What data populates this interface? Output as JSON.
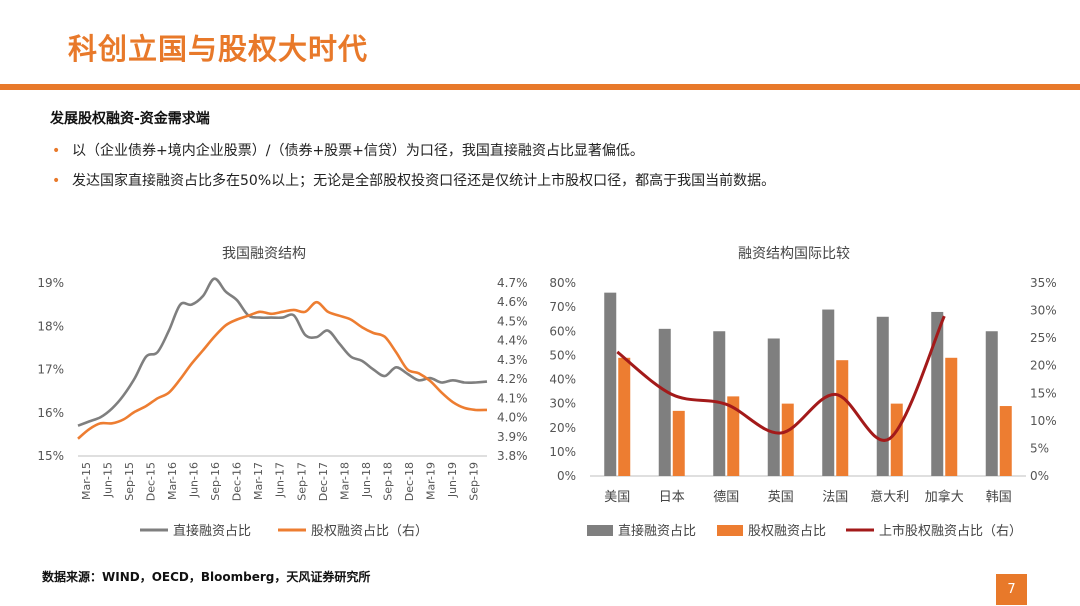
{
  "header": {
    "title": "科创立国与股权大时代"
  },
  "section": {
    "subtitle": "发展股权融资-资金需求端",
    "bullets": [
      "以（企业债券+境内企业股票）/（债券+股票+信贷）为口径，我国直接融资占比显著偏低。",
      "发达国家直接融资占比多在50%以上；无论是全部股权投资口径还是仅统计上市股权口径，都高于我国当前数据。"
    ]
  },
  "colors": {
    "accent": "#e8792a",
    "gray_series": "#7f7f7f",
    "orange_series": "#ed7d31",
    "red_series": "#a31a1a"
  },
  "chart_data": [
    {
      "type": "line",
      "title": "我国融资结构",
      "x_ticks": [
        "Mar-15",
        "Jun-15",
        "Sep-15",
        "Dec-15",
        "Mar-16",
        "Jun-16",
        "Sep-16",
        "Dec-16",
        "Mar-17",
        "Jun-17",
        "Sep-17",
        "Dec-17",
        "Mar-18",
        "Jun-18",
        "Sep-18",
        "Dec-18",
        "Mar-19",
        "Jun-19",
        "Sep-19"
      ],
      "y_left": {
        "range": [
          15,
          19
        ],
        "ticks": [
          "15%",
          "16%",
          "17%",
          "18%",
          "19%"
        ]
      },
      "y_right": {
        "range": [
          3.8,
          4.7
        ],
        "ticks": [
          "3.8%",
          "3.9%",
          "4.0%",
          "4.1%",
          "4.2%",
          "4.3%",
          "4.4%",
          "4.5%",
          "4.6%",
          "4.7%"
        ]
      },
      "series": [
        {
          "name": "直接融资占比",
          "axis": "left",
          "values": [
            15.7,
            15.8,
            15.9,
            16.1,
            16.4,
            16.8,
            17.3,
            17.4,
            17.9,
            18.5,
            18.5,
            18.7,
            19.1,
            18.8,
            18.6,
            18.25,
            18.2,
            18.2,
            18.2,
            18.25,
            17.8,
            17.75,
            17.9,
            17.6,
            17.3,
            17.2,
            17.0,
            16.85,
            17.05,
            16.9,
            16.75,
            16.8,
            16.7,
            16.75,
            16.7,
            16.7,
            16.72
          ]
        },
        {
          "name": "股权融资占比（右）",
          "axis": "right",
          "values": [
            3.89,
            3.94,
            3.97,
            3.97,
            3.99,
            4.03,
            4.06,
            4.1,
            4.13,
            4.2,
            4.28,
            4.35,
            4.42,
            4.48,
            4.51,
            4.53,
            4.55,
            4.54,
            4.55,
            4.56,
            4.55,
            4.6,
            4.55,
            4.53,
            4.51,
            4.47,
            4.44,
            4.42,
            4.34,
            4.25,
            4.23,
            4.19,
            4.13,
            4.08,
            4.05,
            4.04,
            4.04
          ]
        }
      ]
    },
    {
      "type": "bar",
      "title": "融资结构国际比较",
      "categories": [
        "美国",
        "日本",
        "德国",
        "英国",
        "法国",
        "意大利",
        "加拿大",
        "韩国"
      ],
      "y_left": {
        "range": [
          0,
          80
        ],
        "ticks": [
          "0%",
          "10%",
          "20%",
          "30%",
          "40%",
          "50%",
          "60%",
          "70%",
          "80%"
        ]
      },
      "y_right": {
        "range": [
          0,
          35
        ],
        "ticks": [
          "0%",
          "5%",
          "10%",
          "15%",
          "20%",
          "25%",
          "30%",
          "35%"
        ]
      },
      "series": [
        {
          "name": "直接融资占比",
          "kind": "bar",
          "axis": "left",
          "values": [
            76,
            61,
            60,
            57,
            69,
            66,
            68,
            60
          ]
        },
        {
          "name": "股权融资占比",
          "kind": "bar",
          "axis": "left",
          "values": [
            49,
            27,
            33,
            30,
            48,
            30,
            49,
            29
          ]
        },
        {
          "name": "上市股权融资占比（右）",
          "kind": "line",
          "axis": "right",
          "values": [
            22.5,
            14.8,
            13,
            7.8,
            14.8,
            6.8,
            29,
            null
          ]
        }
      ]
    }
  ],
  "footer": {
    "source": "数据来源：WIND，OECD，Bloomberg，天风证券研究所",
    "page_number": "7"
  }
}
